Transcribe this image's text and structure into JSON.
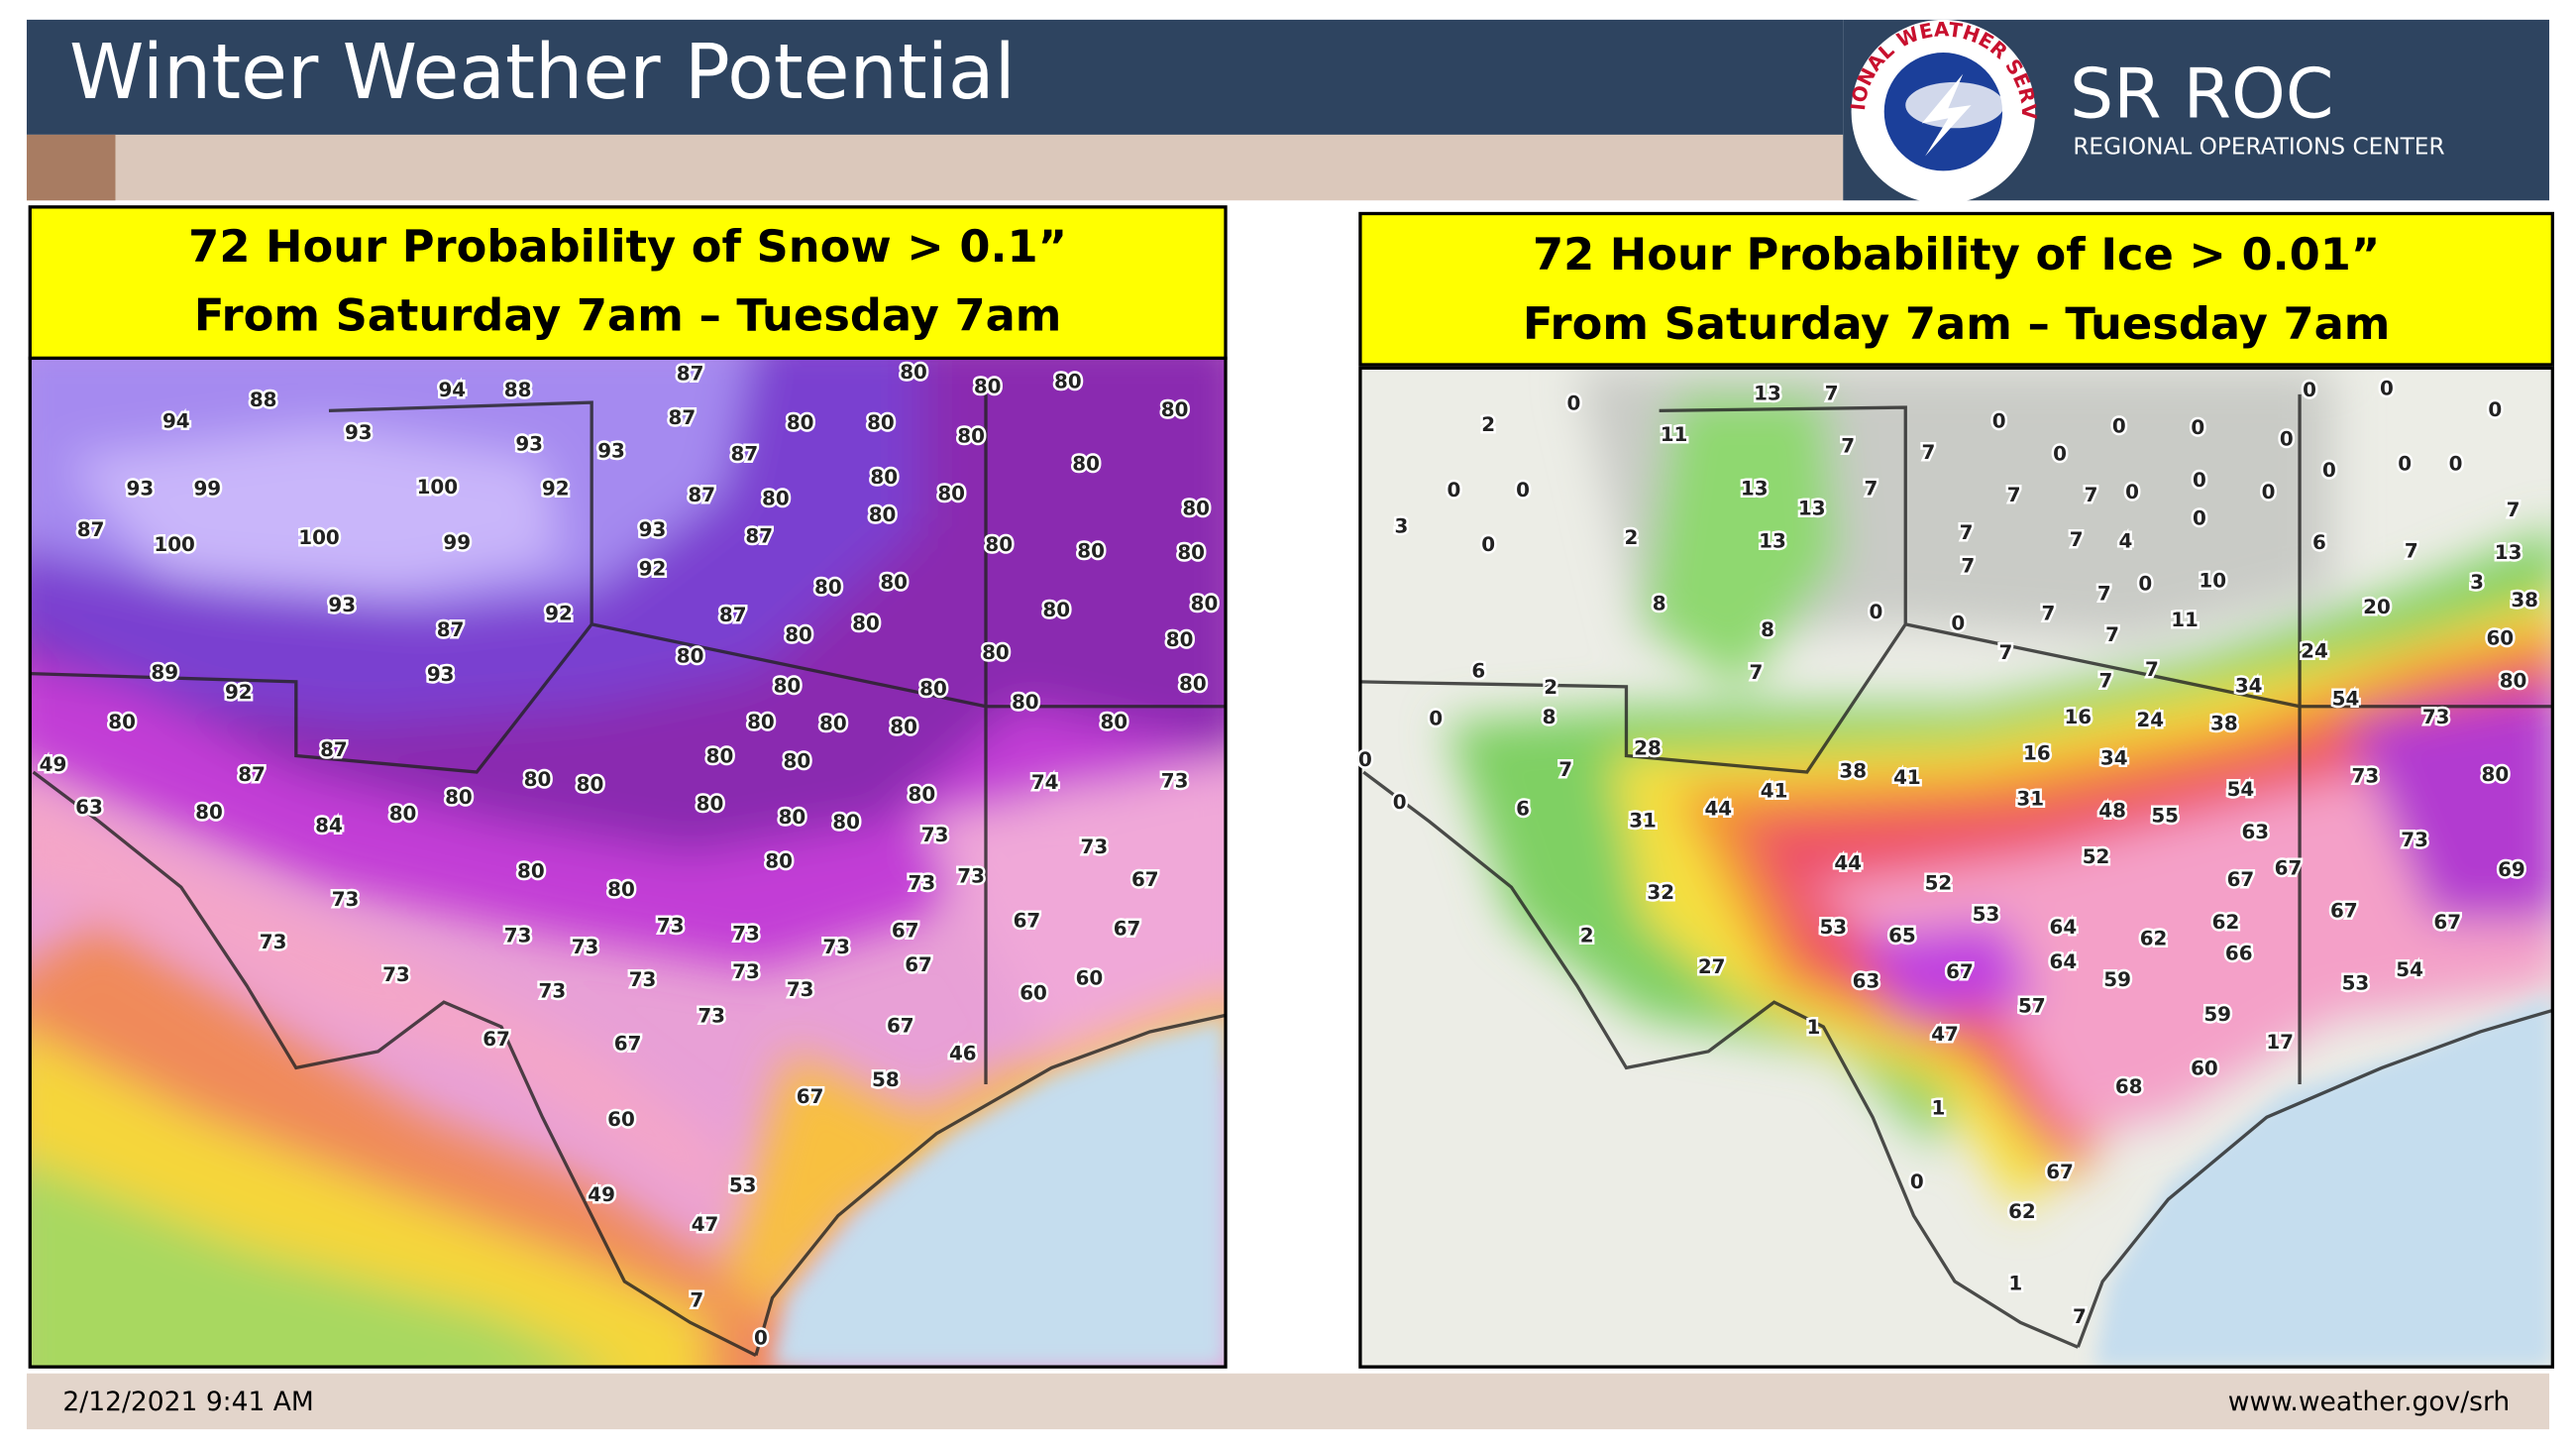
{
  "header": {
    "title": "Winter Weather Potential",
    "org": "SR ROC",
    "org_subtitle": "REGIONAL OPERATIONS CENTER",
    "logo_text": "NATIONAL WEATHER SERVICE"
  },
  "panels": [
    {
      "title_lines": [
        "72 Hour Probability of Snow > 0.1”",
        "From Saturday 7am – Tuesday 7am"
      ],
      "labels": [
        94,
        88,
        94,
        88,
        87,
        80,
        80,
        80,
        80,
        93,
        93,
        93,
        87,
        87,
        80,
        80,
        80,
        80,
        93,
        99,
        100,
        92,
        87,
        80,
        80,
        80,
        80,
        87,
        100,
        100,
        99,
        93,
        87,
        80,
        80,
        80,
        80,
        92,
        93,
        92,
        87,
        80,
        80,
        80,
        80,
        87,
        80,
        80,
        80,
        80,
        80,
        89,
        93,
        92,
        80,
        80,
        80,
        80,
        80,
        80,
        80,
        80,
        80,
        87,
        80,
        80,
        49,
        87,
        80,
        80,
        80,
        74,
        73,
        63,
        80,
        84,
        80,
        80,
        80,
        80,
        80,
        73,
        73,
        80,
        80,
        80,
        73,
        73,
        67,
        73,
        73,
        73,
        73,
        73,
        73,
        73,
        67,
        67,
        67,
        73,
        73,
        73,
        73,
        73,
        67,
        60,
        60,
        73,
        67,
        67,
        67,
        46,
        67,
        58,
        60,
        49,
        53,
        47,
        7,
        0
      ]
    },
    {
      "title_lines": [
        "72 Hour Probability of Ice > 0.01”",
        "From Saturday 7am – Tuesday 7am"
      ],
      "labels": [
        13,
        7,
        2,
        0,
        11,
        7,
        7,
        0,
        0,
        0,
        0,
        0,
        0,
        0,
        0,
        13,
        13,
        7,
        0,
        0,
        7,
        7,
        0,
        0,
        0,
        0,
        0,
        0,
        7,
        3,
        0,
        2,
        13,
        7,
        7,
        7,
        4,
        0,
        6,
        7,
        13,
        8,
        0,
        7,
        0,
        10,
        3,
        38,
        8,
        0,
        7,
        11,
        20,
        60,
        6,
        2,
        7,
        7,
        7,
        24,
        7,
        7,
        34,
        54,
        80,
        0,
        8,
        16,
        24,
        38,
        73,
        28,
        7,
        16,
        34,
        38,
        41,
        41,
        44,
        31,
        31,
        48,
        55,
        54,
        73,
        80,
        0,
        0,
        6,
        63,
        73,
        52,
        44,
        67,
        67,
        69,
        32,
        52,
        53,
        67,
        67,
        2,
        53,
        65,
        64,
        62,
        62,
        66,
        27,
        64,
        63,
        67,
        59,
        53,
        54,
        57,
        59,
        1,
        47,
        17,
        60,
        68,
        1,
        0,
        67,
        62,
        1,
        7
      ]
    }
  ],
  "footer": {
    "date": "2/12/2021 9:41 AM",
    "url": "www.weather.gov/srh"
  }
}
